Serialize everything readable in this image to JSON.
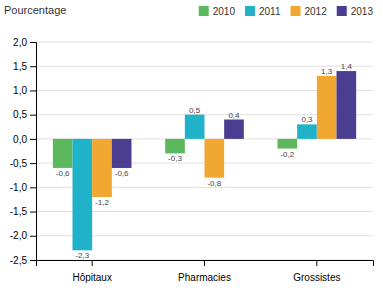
{
  "chart_data": {
    "type": "bar",
    "ylabel": "Pourcentage",
    "categories": [
      "Hôpitaux",
      "Pharmacies",
      "Grossistes"
    ],
    "series": [
      {
        "name": "2010",
        "color": "#5cb85c",
        "values": [
          -0.6,
          -0.3,
          -0.2
        ],
        "value_labels": [
          "-0,6",
          "-0,3",
          "-0,2"
        ]
      },
      {
        "name": "2011",
        "color": "#20b2c8",
        "values": [
          -2.3,
          0.5,
          0.3
        ],
        "value_labels": [
          "-2,3",
          "0,5",
          "0,3"
        ]
      },
      {
        "name": "2012",
        "color": "#f0a830",
        "values": [
          -1.2,
          -0.8,
          1.3
        ],
        "value_labels": [
          "-1,2",
          "-0,8",
          "1,3"
        ]
      },
      {
        "name": "2013",
        "color": "#4b3d8f",
        "values": [
          -0.6,
          0.4,
          1.4
        ],
        "value_labels": [
          "-0,6",
          "0,4",
          "1,4"
        ]
      }
    ],
    "ylim": [
      -2.5,
      2.0
    ],
    "yticks": [
      {
        "value": -2.5,
        "label": "-2,5"
      },
      {
        "value": -2.0,
        "label": "-2,0"
      },
      {
        "value": -1.5,
        "label": "-1,5"
      },
      {
        "value": -1.0,
        "label": "-1,0"
      },
      {
        "value": -0.5,
        "label": "-0,5"
      },
      {
        "value": 0.0,
        "label": "0,0"
      },
      {
        "value": 0.5,
        "label": "0,5"
      },
      {
        "value": 1.0,
        "label": "1,0"
      },
      {
        "value": 1.5,
        "label": "1,5"
      },
      {
        "value": 2.0,
        "label": "2,0"
      }
    ],
    "grid": true,
    "data_labels": true,
    "legend": "top"
  }
}
